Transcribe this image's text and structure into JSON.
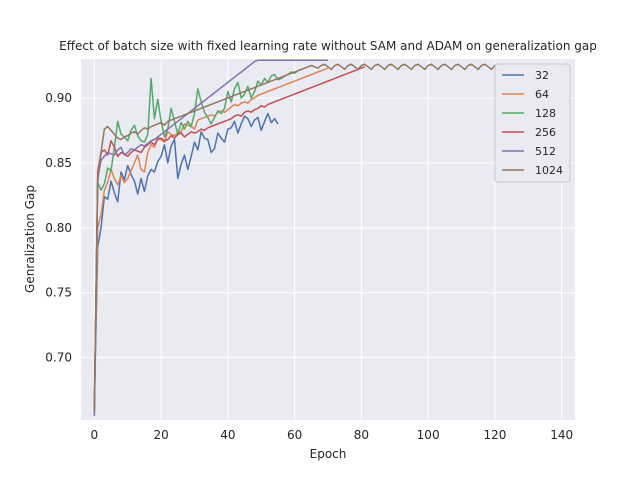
{
  "chart_data": {
    "type": "line",
    "title": "Effect of batch size with fixed learning rate without SAM and ADAM on generalization gap",
    "xlabel": "Epoch",
    "ylabel": "Genralization Gap",
    "xlim": [
      -4,
      144
    ],
    "ylim": [
      0.652,
      0.93
    ],
    "xticks": [
      0,
      20,
      40,
      60,
      80,
      100,
      120,
      140
    ],
    "yticks": [
      0.7,
      0.75,
      0.8,
      0.85,
      0.9
    ],
    "ytick_labels": [
      "0.70",
      "0.75",
      "0.80",
      "0.85",
      "0.90"
    ],
    "grid": true,
    "legend_position": "top-right",
    "series": [
      {
        "name": "32",
        "color": "#4c72b0",
        "values": [
          0.665,
          0.785,
          0.8,
          0.824,
          0.822,
          0.836,
          0.827,
          0.82,
          0.843,
          0.837,
          0.848,
          0.841,
          0.836,
          0.826,
          0.838,
          0.828,
          0.84,
          0.845,
          0.843,
          0.851,
          0.855,
          0.864,
          0.85,
          0.863,
          0.868,
          0.838,
          0.849,
          0.856,
          0.845,
          0.855,
          0.866,
          0.86,
          0.874,
          0.869,
          0.868,
          0.858,
          0.861,
          0.873,
          0.869,
          0.866,
          0.876,
          0.877,
          0.882,
          0.873,
          0.88,
          0.886,
          0.884,
          0.878,
          0.883,
          0.885,
          0.875,
          0.882,
          0.888,
          0.881,
          0.884,
          0.88
        ]
      },
      {
        "name": "64",
        "color": "#dd8452",
        "values": [
          0.66,
          0.8,
          0.81,
          0.829,
          0.835,
          0.845,
          0.838,
          0.833,
          0.84,
          0.835,
          0.838,
          0.844,
          0.85,
          0.856,
          0.845,
          0.843,
          0.858,
          0.864,
          0.862,
          0.87,
          0.868,
          0.866,
          0.874,
          0.872,
          0.871,
          0.873,
          0.874,
          0.88,
          0.879,
          0.878,
          0.876,
          0.883,
          0.884,
          0.885,
          0.886,
          0.887,
          0.886,
          0.889,
          0.89,
          0.889,
          0.891,
          0.893,
          0.895,
          0.894,
          0.896,
          0.897,
          0.896,
          0.899,
          0.9,
          0.902,
          0.903,
          0.904,
          0.905,
          0.906,
          0.907,
          0.908,
          0.909,
          0.91,
          0.911,
          0.912,
          0.913,
          0.914,
          0.915,
          0.916,
          0.917,
          0.918,
          0.919,
          0.92,
          0.921,
          0.922,
          0.923
        ]
      },
      {
        "name": "128",
        "color": "#55a868",
        "values": [
          0.663,
          0.835,
          0.829,
          0.834,
          0.846,
          0.844,
          0.862,
          0.882,
          0.872,
          0.87,
          0.867,
          0.875,
          0.879,
          0.871,
          0.867,
          0.866,
          0.872,
          0.915,
          0.884,
          0.899,
          0.882,
          0.87,
          0.876,
          0.892,
          0.882,
          0.872,
          0.881,
          0.876,
          0.882,
          0.878,
          0.888,
          0.907,
          0.897,
          0.889,
          0.885,
          0.88,
          0.885,
          0.89,
          0.888,
          0.892,
          0.905,
          0.897,
          0.907,
          0.912,
          0.9,
          0.903,
          0.909,
          0.9,
          0.905,
          0.913,
          0.91,
          0.915,
          0.912,
          0.917,
          0.918,
          0.914,
          0.915,
          0.917,
          0.918,
          0.92,
          0.919,
          0.921,
          0.922
        ]
      },
      {
        "name": "256",
        "color": "#c44e52",
        "values": [
          0.658,
          0.843,
          0.858,
          0.86,
          0.856,
          0.867,
          0.862,
          0.855,
          0.858,
          0.857,
          0.855,
          0.858,
          0.86,
          0.859,
          0.858,
          0.862,
          0.864,
          0.866,
          0.864,
          0.868,
          0.869,
          0.867,
          0.868,
          0.871,
          0.869,
          0.872,
          0.873,
          0.87,
          0.872,
          0.874,
          0.873,
          0.874,
          0.876,
          0.875,
          0.877,
          0.878,
          0.879,
          0.88,
          0.881,
          0.882,
          0.883,
          0.884,
          0.886,
          0.887,
          0.886,
          0.889,
          0.89,
          0.889,
          0.891,
          0.892,
          0.894,
          0.893,
          0.895,
          0.896,
          0.897,
          0.898,
          0.899,
          0.9,
          0.901,
          0.902,
          0.903,
          0.904,
          0.905,
          0.906,
          0.907,
          0.908,
          0.909,
          0.91,
          0.911,
          0.912,
          0.913,
          0.914,
          0.915,
          0.916,
          0.917,
          0.918,
          0.919,
          0.92,
          0.921,
          0.922,
          0.923,
          0.924
        ]
      },
      {
        "name": "512",
        "color": "#8172b3",
        "values": [
          0.655,
          0.838,
          0.852,
          0.855,
          0.858,
          0.857,
          0.856,
          0.86,
          0.862,
          0.856,
          0.858,
          0.861,
          0.86,
          0.862,
          0.864,
          0.863,
          0.865,
          0.867,
          0.868,
          0.87,
          0.872,
          0.874,
          0.876,
          0.878,
          0.88,
          0.882,
          0.884,
          0.886,
          0.888,
          0.89,
          0.892,
          0.894,
          0.896,
          0.898,
          0.9,
          0.902,
          0.904,
          0.906,
          0.908,
          0.91,
          0.912,
          0.914,
          0.916,
          0.918,
          0.92,
          0.922,
          0.924,
          0.926,
          0.928,
          0.929,
          0.929,
          0.929,
          0.929,
          0.929,
          0.929,
          0.929,
          0.929,
          0.929,
          0.929,
          0.929,
          0.929,
          0.929,
          0.929,
          0.929,
          0.929,
          0.929,
          0.929,
          0.929,
          0.929,
          0.929,
          0.929
        ]
      },
      {
        "name": "1024",
        "color": "#937860",
        "values": [
          0.66,
          0.835,
          0.858,
          0.876,
          0.878,
          0.875,
          0.872,
          0.869,
          0.868,
          0.87,
          0.871,
          0.873,
          0.874,
          0.872,
          0.875,
          0.877,
          0.876,
          0.878,
          0.879,
          0.88,
          0.881,
          0.879,
          0.882,
          0.883,
          0.884,
          0.885,
          0.886,
          0.887,
          0.888,
          0.889,
          0.89,
          0.891,
          0.892,
          0.893,
          0.894,
          0.895,
          0.896,
          0.897,
          0.898,
          0.899,
          0.9,
          0.901,
          0.902,
          0.903,
          0.904,
          0.905,
          0.906,
          0.907,
          0.908,
          0.909,
          0.91,
          0.911,
          0.912,
          0.913,
          0.914,
          0.915,
          0.916,
          0.917,
          0.918,
          0.919,
          0.92,
          0.921,
          0.922,
          0.923,
          0.924,
          0.925,
          0.924,
          0.923,
          0.925,
          0.926,
          0.924,
          0.922,
          0.925,
          0.926,
          0.924,
          0.922,
          0.925,
          0.926,
          0.924,
          0.922,
          0.925,
          0.926,
          0.924,
          0.922,
          0.925,
          0.926,
          0.924,
          0.922,
          0.925,
          0.926,
          0.924,
          0.922,
          0.925,
          0.926,
          0.924,
          0.922,
          0.925,
          0.926,
          0.924,
          0.922,
          0.925,
          0.926,
          0.924,
          0.922,
          0.925,
          0.926,
          0.924,
          0.922,
          0.925,
          0.926,
          0.924,
          0.922,
          0.925,
          0.926,
          0.924,
          0.922,
          0.925,
          0.926,
          0.924,
          0.922,
          0.925,
          0.926,
          0.924,
          0.922,
          0.925,
          0.926,
          0.924,
          0.922,
          0.925,
          0.926
        ]
      }
    ]
  }
}
